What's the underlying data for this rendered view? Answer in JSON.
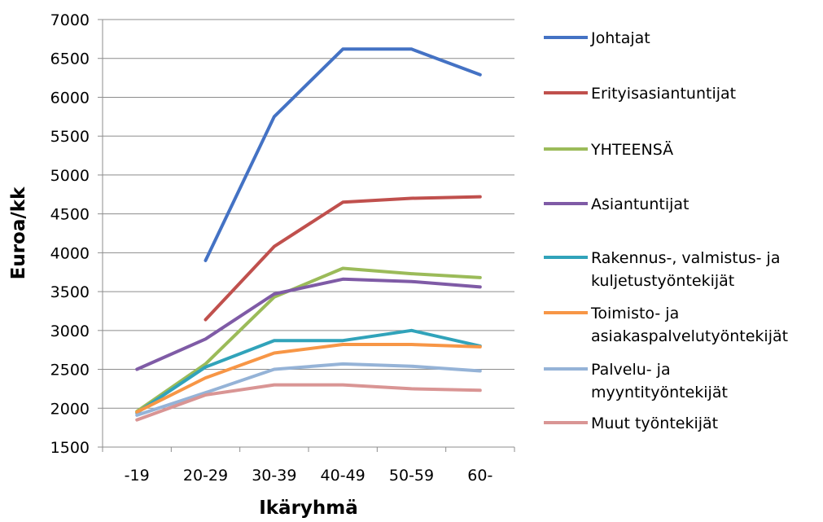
{
  "chart_data": {
    "type": "line",
    "title": "",
    "xlabel": "Ikäryhmä",
    "ylabel": "Euroa/kk",
    "categories": [
      "-19",
      "20-29",
      "30-39",
      "40-49",
      "50-59",
      "60-"
    ],
    "ylim": [
      1500,
      7000
    ],
    "yticks": [
      1500,
      2000,
      2500,
      3000,
      3500,
      4000,
      4500,
      5000,
      5500,
      6000,
      6500,
      7000
    ],
    "grid": "horizontal",
    "legend": "right",
    "series": [
      {
        "name": "Johtajat",
        "color": "#4472C4",
        "values": [
          null,
          3900,
          5750,
          6620,
          6620,
          6290
        ],
        "legend_lines": [
          "Johtajat"
        ]
      },
      {
        "name": "Erityisasiantuntijat",
        "color": "#C0504D",
        "values": [
          null,
          3140,
          4080,
          4650,
          4700,
          4720
        ],
        "legend_lines": [
          "Erityisasiantuntijat"
        ]
      },
      {
        "name": "YHTEENSÄ",
        "color": "#9BBB59",
        "values": [
          1960,
          2570,
          3430,
          3800,
          3730,
          3680
        ],
        "legend_lines": [
          "YHTEENSÄ"
        ]
      },
      {
        "name": "Asiantuntijat",
        "color": "#7F5BA6",
        "values": [
          2500,
          2890,
          3470,
          3660,
          3630,
          3560
        ],
        "legend_lines": [
          "Asiantuntijat"
        ]
      },
      {
        "name": "Rakennus-, valmistus- ja kuljetustyöntekijät",
        "color": "#31A3BA",
        "values": [
          1940,
          2530,
          2870,
          2870,
          3000,
          2800
        ],
        "legend_lines": [
          "Rakennus-, valmistus- ja",
          "kuljetustyöntekijät"
        ]
      },
      {
        "name": "Toimisto- ja asiakaspalvelutyöntekijät",
        "color": "#F79646",
        "values": [
          1950,
          2390,
          2710,
          2820,
          2820,
          2790
        ],
        "legend_lines": [
          "Toimisto- ja",
          "asiakaspalvelutyöntekijät"
        ]
      },
      {
        "name": "Palvelu- ja myyntityöntekijät",
        "color": "#95B3D7",
        "values": [
          1910,
          2200,
          2500,
          2570,
          2540,
          2480
        ],
        "legend_lines": [
          "Palvelu- ja",
          "myyntityöntekijät"
        ]
      },
      {
        "name": "Muut työntekijät",
        "color": "#D99594",
        "values": [
          1850,
          2170,
          2300,
          2300,
          2250,
          2230
        ],
        "legend_lines": [
          "Muut työntekijät"
        ]
      }
    ]
  }
}
